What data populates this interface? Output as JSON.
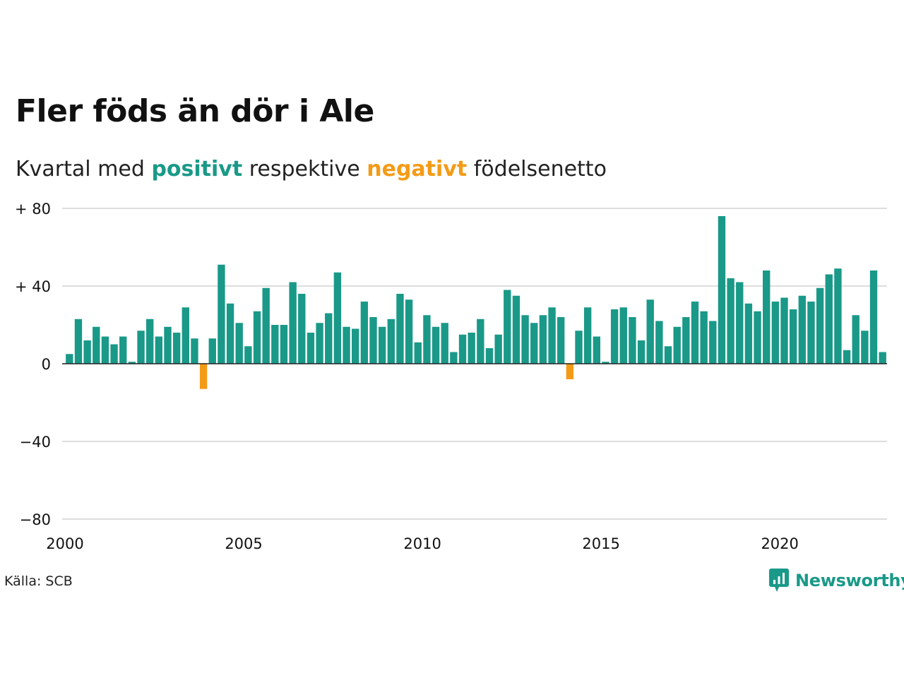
{
  "title": "Fler föds än dör i Ale",
  "subtitle": {
    "prefix": "Kvartal med",
    "positive_word": "positivt",
    "middle": "respektive",
    "negative_word": "negativt",
    "suffix": "födelsenetto"
  },
  "source": "Källa: SCB",
  "brand": {
    "name": "Newsworthy",
    "icon": "newsworthy-logo-icon"
  },
  "colors": {
    "positive": "#1a9988",
    "negative": "#f49b16",
    "grid": "#dddddd",
    "axis": "#222222"
  },
  "chart_data": {
    "type": "bar",
    "frequency": "quarterly",
    "start_period": "2000 Q1",
    "end_period": "2022 Q4",
    "ylim": [
      -80,
      80
    ],
    "xlim": [
      2000,
      2023
    ],
    "y_ticks": [
      80,
      40,
      0,
      -40,
      -80
    ],
    "y_tick_labels": [
      "+ 80",
      "+ 40",
      "0",
      "−40",
      "−80"
    ],
    "x_ticks": [
      2000,
      2005,
      2010,
      2015,
      2020
    ],
    "x_tick_labels": [
      "2000",
      "2005",
      "2010",
      "2015",
      "2020"
    ],
    "grid": true,
    "values": [
      5,
      23,
      12,
      19,
      14,
      10,
      14,
      1,
      17,
      23,
      14,
      19,
      16,
      29,
      13,
      -13,
      13,
      51,
      31,
      21,
      9,
      27,
      39,
      20,
      20,
      42,
      36,
      16,
      21,
      26,
      47,
      19,
      18,
      32,
      24,
      19,
      23,
      36,
      33,
      11,
      25,
      19,
      21,
      6,
      15,
      16,
      23,
      8,
      15,
      38,
      35,
      25,
      21,
      25,
      29,
      24,
      -8,
      17,
      29,
      14,
      1,
      28,
      29,
      24,
      12,
      33,
      22,
      9,
      19,
      24,
      32,
      27,
      22,
      76,
      44,
      42,
      31,
      27,
      48,
      32,
      34,
      28,
      35,
      32,
      39,
      46,
      49,
      7,
      25,
      17,
      48,
      6
    ]
  }
}
